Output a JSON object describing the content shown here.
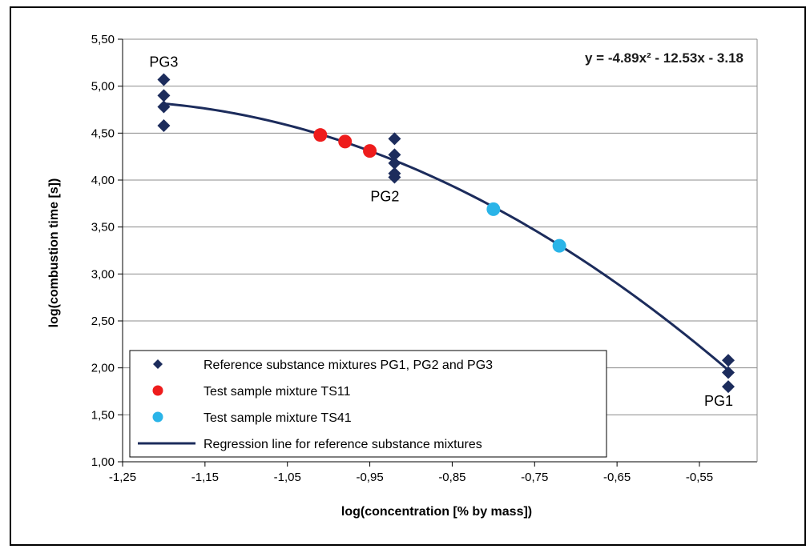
{
  "chart_data": {
    "type": "scatter",
    "xlabel": "log(concentration [% by mass])",
    "ylabel": "log(combustion time [s])",
    "xlim": [
      -1.25,
      -0.48
    ],
    "ylim": [
      1.0,
      5.5
    ],
    "x_ticks": [
      "-1,25",
      "-1,15",
      "-1,05",
      "-0,95",
      "-0,85",
      "-0,75",
      "-0,65",
      "-0,55"
    ],
    "y_ticks": [
      "1,00",
      "1,50",
      "2,00",
      "2,50",
      "3,00",
      "3,50",
      "4,00",
      "4,50",
      "5,00",
      "5,50"
    ],
    "grid": "horizontal",
    "legend_position": "bottom-left",
    "equation": "y = -4.89x² - 12.53x - 3.18",
    "group_labels": [
      {
        "text": "PG3",
        "x": -1.2,
        "y": 5.07
      },
      {
        "text": "PG2",
        "x": -0.92,
        "y": 4.03
      },
      {
        "text": "PG1",
        "x": -0.515,
        "y": 1.8
      }
    ],
    "series": [
      {
        "name": "Reference substance mixtures PG1, PG2 and PG3",
        "marker": "diamond",
        "color": "#1c2c5c",
        "points": [
          [
            -1.2,
            5.07
          ],
          [
            -1.2,
            4.9
          ],
          [
            -1.2,
            4.78
          ],
          [
            -1.2,
            4.58
          ],
          [
            -0.92,
            4.44
          ],
          [
            -0.92,
            4.27
          ],
          [
            -0.92,
            4.18
          ],
          [
            -0.92,
            4.07
          ],
          [
            -0.92,
            4.03
          ],
          [
            -0.515,
            2.08
          ],
          [
            -0.515,
            1.95
          ],
          [
            -0.515,
            1.8
          ]
        ]
      },
      {
        "name": "Test sample mixture TS11",
        "marker": "circle",
        "color": "#ee1c1c",
        "points": [
          [
            -1.01,
            4.48
          ],
          [
            -0.98,
            4.41
          ],
          [
            -0.95,
            4.31
          ]
        ]
      },
      {
        "name": "Test sample mixture TS41",
        "marker": "circle",
        "color": "#2ab4e8",
        "points": [
          [
            -0.8,
            3.69
          ],
          [
            -0.72,
            3.3
          ]
        ]
      },
      {
        "name": "Regression line for reference substance mixtures",
        "type": "line",
        "color": "#1c2c5c",
        "coefficients": {
          "a": -4.89,
          "b": -12.53,
          "c": -3.18
        },
        "x_range": [
          -1.2,
          -0.515
        ]
      }
    ]
  }
}
